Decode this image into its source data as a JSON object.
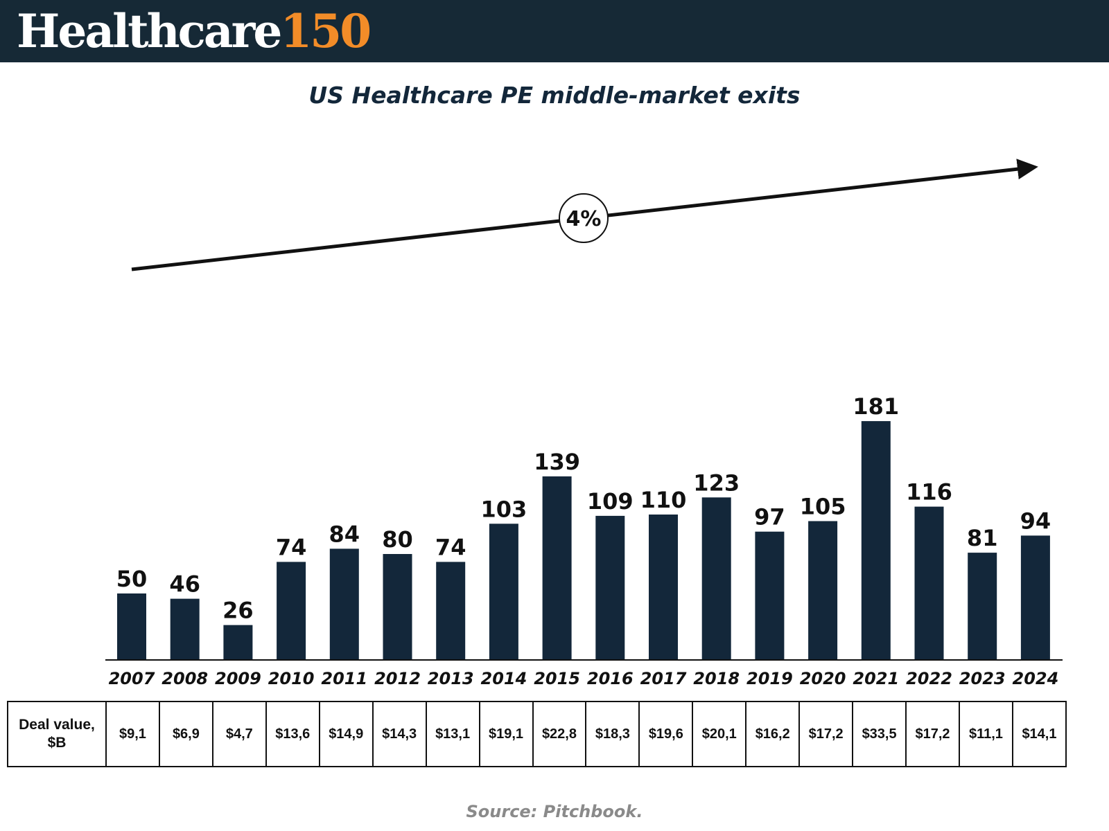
{
  "header": {
    "brand_main": "Healthcare",
    "brand_accent": "150",
    "background_color": "#162936",
    "accent_color": "#f28c28"
  },
  "chart_data": {
    "type": "bar",
    "title": "US Healthcare PE middle-market exits",
    "categories": [
      "2007",
      "2008",
      "2009",
      "2010",
      "2011",
      "2012",
      "2013",
      "2014",
      "2015",
      "2016",
      "2017",
      "2018",
      "2019",
      "2020",
      "2021",
      "2022",
      "2023",
      "2024"
    ],
    "values": [
      50,
      46,
      26,
      74,
      84,
      80,
      74,
      103,
      139,
      109,
      110,
      123,
      97,
      105,
      181,
      116,
      81,
      94
    ],
    "ylim": [
      0,
      181
    ],
    "bar_color": "#13273a",
    "grid": false,
    "trend_label": "4%"
  },
  "deal_table": {
    "row_label": "Deal value, $B",
    "values": [
      "$9,1",
      "$6,9",
      "$4,7",
      "$13,6",
      "$14,9",
      "$14,3",
      "$13,1",
      "$19,1",
      "$22,8",
      "$18,3",
      "$19,6",
      "$20,1",
      "$16,2",
      "$17,2",
      "$33,5",
      "$17,2",
      "$11,1",
      "$14,1"
    ]
  },
  "source": "Source: Pitchbook."
}
